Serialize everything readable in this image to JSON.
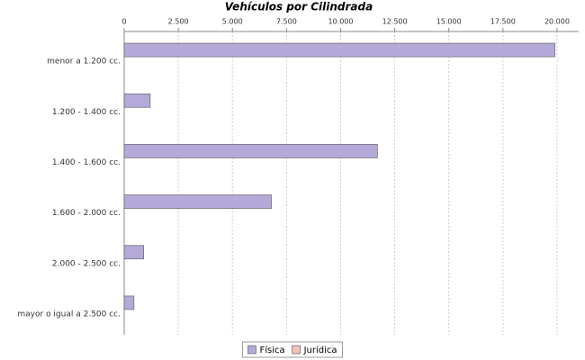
{
  "chart_data": {
    "type": "bar",
    "orientation": "horizontal",
    "title": "Vehículos por Cilindrada",
    "categories": [
      "menor a 1.200 cc.",
      "1.200 - 1.400 cc.",
      "1.400 - 1.600 cc.",
      "1.600 - 2.000 cc.",
      "2.000 - 2.500 cc.",
      "mayor o igual a 2.500 cc."
    ],
    "series": [
      {
        "name": "Física",
        "color": "#b4a9d8",
        "values": [
          19900,
          1200,
          11700,
          6800,
          900,
          450
        ]
      },
      {
        "name": "Jurídica",
        "color": "#f4c0b8",
        "values": [
          0,
          0,
          0,
          0,
          0,
          0
        ]
      }
    ],
    "xlim": [
      0,
      21000
    ],
    "xticks": [
      0,
      {
        "value": 2500,
        "label": "2.500"
      },
      {
        "value": 5000,
        "label": "5.000"
      },
      {
        "value": 7500,
        "label": "7.500"
      },
      {
        "value": 10000,
        "label": "10.000"
      },
      {
        "value": 12500,
        "label": "12.500"
      },
      {
        "value": 15000,
        "label": "15.000"
      },
      {
        "value": 17500,
        "label": "17.500"
      },
      {
        "value": 20000,
        "label": "20.000"
      }
    ],
    "grid": true,
    "legend": "bottom"
  }
}
